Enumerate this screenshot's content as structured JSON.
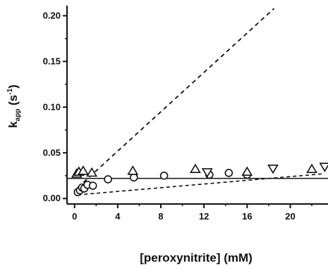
{
  "chart_data": {
    "type": "scatter",
    "title": "",
    "xlabel": "[peroxynitrite] (mM)",
    "ylabel": {
      "main": "k",
      "sub": "app",
      "unit_open": " (s",
      "unit_sup": "-1",
      "unit_close": ")"
    },
    "xlim": [
      -0.7,
      23.5
    ],
    "ylim": [
      -0.006,
      0.208
    ],
    "xticks": [
      "0",
      "4",
      "8",
      "12",
      "16",
      "20"
    ],
    "xtick_values": [
      0,
      4,
      8,
      12,
      16,
      20
    ],
    "yticks": [
      "0.00",
      "0.05",
      "0.10",
      "0.15",
      "0.20"
    ],
    "ytick_values": [
      0.0,
      0.05,
      0.1,
      0.15,
      0.2
    ],
    "series": [
      {
        "marker": "circle",
        "x": [
          0.3,
          0.5,
          0.7,
          0.9,
          1.2,
          1.7,
          3.1,
          5.5,
          8.3,
          12.5,
          14.3,
          16.0
        ],
        "y": [
          0.007,
          0.009,
          0.012,
          0.011,
          0.015,
          0.014,
          0.021,
          0.023,
          0.025,
          0.026,
          0.028,
          0.026
        ]
      },
      {
        "marker": "triangle-up",
        "x": [
          0.2,
          0.4,
          0.8,
          1.6,
          5.4,
          11.2,
          16.0,
          22.0
        ],
        "y": [
          0.027,
          0.029,
          0.03,
          0.028,
          0.03,
          0.032,
          0.029,
          0.032
        ]
      },
      {
        "marker": "triangle-down",
        "x": [
          12.3,
          18.4,
          23.2
        ],
        "y": [
          0.029,
          0.033,
          0.035
        ]
      }
    ],
    "fit_lines": [
      {
        "style": "solid",
        "x": [
          -0.7,
          23.5
        ],
        "y": [
          0.022,
          0.022
        ]
      },
      {
        "style": "dashed-steep",
        "x": [
          0.3,
          18.5
        ],
        "y": [
          0.012,
          0.208
        ]
      },
      {
        "style": "dashed-shallow",
        "x": [
          0.3,
          23.0
        ],
        "y": [
          0.004,
          0.027
        ]
      }
    ],
    "grid": false,
    "legend": "none"
  }
}
